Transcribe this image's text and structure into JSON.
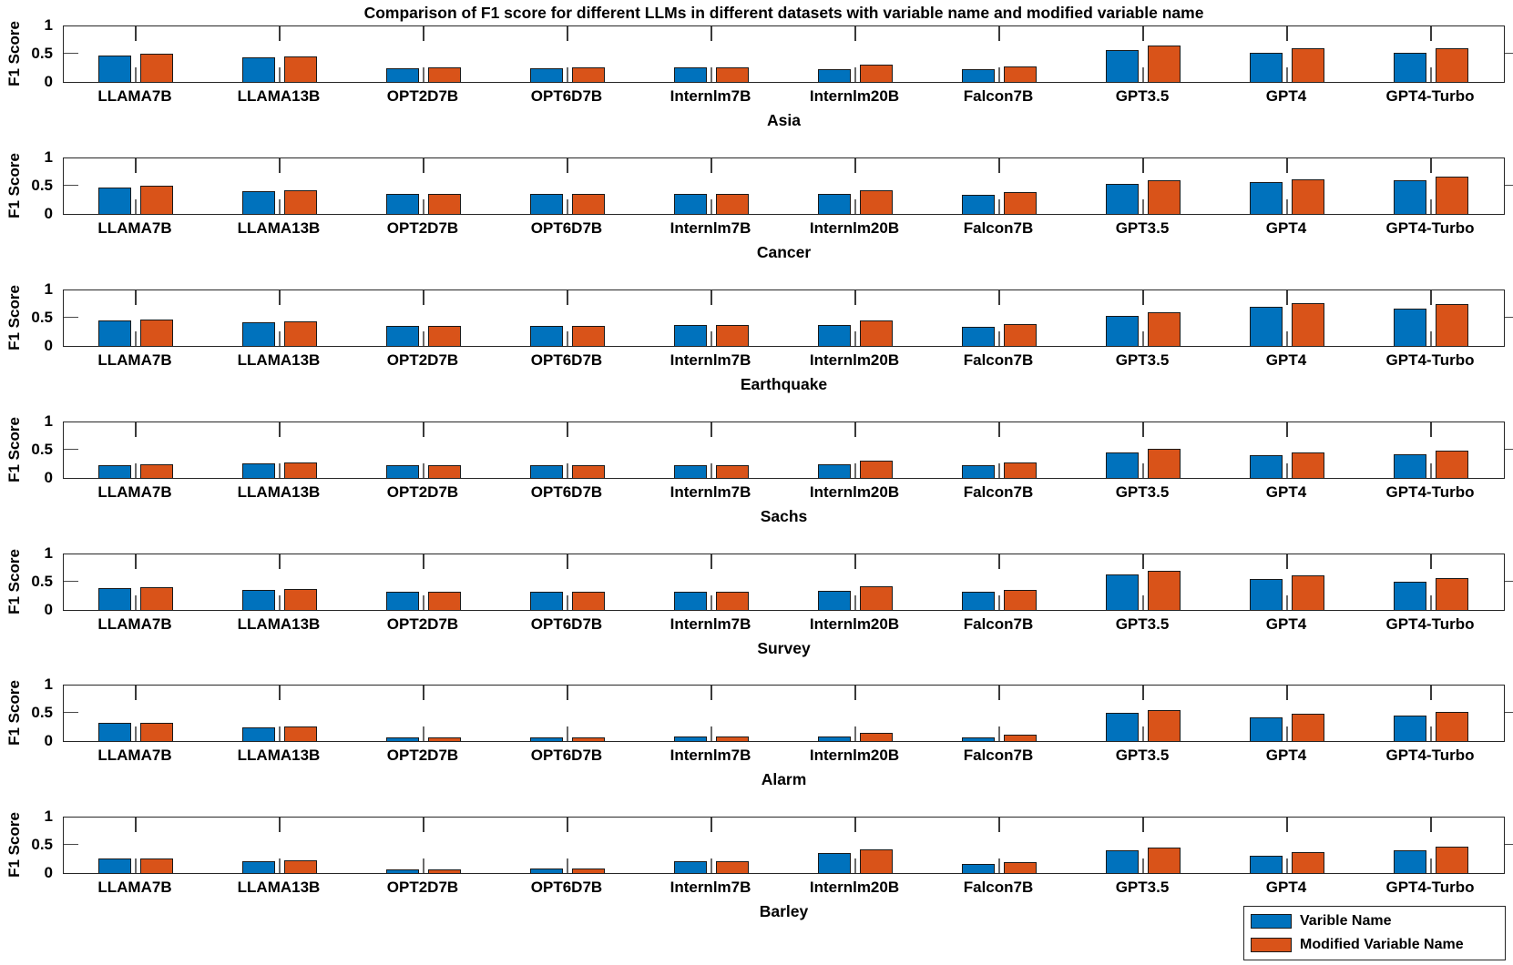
{
  "title": "Comparison of F1 score for different LLMs in different datasets with variable name and modified variable name",
  "ylabel": "F1 Score",
  "yticks": [
    "1",
    "0.5",
    "0"
  ],
  "categories": [
    "LLAMA7B",
    "LLAMA13B",
    "OPT2D7B",
    "OPT6D7B",
    "Internlm7B",
    "Internlm20B",
    "Falcon7B",
    "GPT3.5",
    "GPT4",
    "GPT4-Turbo"
  ],
  "colors": {
    "series_variable": "#0072BD",
    "series_modified": "#D95319",
    "axis": "#262626",
    "bar_edge": "#1a1a1a",
    "background": "#ffffff",
    "text": "#000000"
  },
  "legend": {
    "items": [
      {
        "label": "Varible Name",
        "color": "#0072BD"
      },
      {
        "label": "Modified Variable Name",
        "color": "#D95319"
      }
    ]
  },
  "chart_data": [
    {
      "type": "bar",
      "title": "Asia",
      "ylabel": "F1 Score",
      "ylim": [
        0,
        1
      ],
      "yticks": [
        0,
        0.5,
        1
      ],
      "legend_position": "none",
      "grid": false,
      "series": [
        {
          "name": "Varible Name",
          "values": [
            0.49,
            0.45,
            0.25,
            0.25,
            0.26,
            0.24,
            0.24,
            0.58,
            0.54,
            0.54
          ]
        },
        {
          "name": "Modified Variable Name",
          "values": [
            0.51,
            0.47,
            0.26,
            0.26,
            0.27,
            0.32,
            0.29,
            0.66,
            0.61,
            0.62
          ]
        }
      ]
    },
    {
      "type": "bar",
      "title": "Cancer",
      "ylabel": "F1 Score",
      "ylim": [
        0,
        1
      ],
      "yticks": [
        0,
        0.5,
        1
      ],
      "legend_position": "none",
      "grid": false,
      "series": [
        {
          "name": "Varible Name",
          "values": [
            0.49,
            0.42,
            0.36,
            0.36,
            0.36,
            0.37,
            0.35,
            0.55,
            0.58,
            0.62
          ]
        },
        {
          "name": "Modified Variable Name",
          "values": [
            0.51,
            0.44,
            0.36,
            0.36,
            0.37,
            0.44,
            0.4,
            0.61,
            0.64,
            0.68
          ]
        }
      ]
    },
    {
      "type": "bar",
      "title": "Earthquake",
      "ylabel": "F1 Score",
      "ylim": [
        0,
        1
      ],
      "yticks": [
        0,
        0.5,
        1
      ],
      "legend_position": "none",
      "grid": false,
      "series": [
        {
          "name": "Varible Name",
          "values": [
            0.46,
            0.43,
            0.36,
            0.36,
            0.38,
            0.38,
            0.35,
            0.55,
            0.71,
            0.69
          ]
        },
        {
          "name": "Modified Variable Name",
          "values": [
            0.48,
            0.45,
            0.37,
            0.37,
            0.39,
            0.46,
            0.4,
            0.62,
            0.79,
            0.76
          ]
        }
      ]
    },
    {
      "type": "bar",
      "title": "Sachs",
      "ylabel": "F1 Score",
      "ylim": [
        0,
        1
      ],
      "yticks": [
        0,
        0.5,
        1
      ],
      "legend_position": "none",
      "grid": false,
      "series": [
        {
          "name": "Varible Name",
          "values": [
            0.24,
            0.27,
            0.23,
            0.23,
            0.23,
            0.25,
            0.23,
            0.47,
            0.41,
            0.44
          ]
        },
        {
          "name": "Modified Variable Name",
          "values": [
            0.25,
            0.29,
            0.23,
            0.23,
            0.24,
            0.32,
            0.28,
            0.54,
            0.47,
            0.5
          ]
        }
      ]
    },
    {
      "type": "bar",
      "title": "Survey",
      "ylabel": "F1 Score",
      "ylim": [
        0,
        1
      ],
      "yticks": [
        0,
        0.5,
        1
      ],
      "legend_position": "none",
      "grid": false,
      "series": [
        {
          "name": "Varible Name",
          "values": [
            0.4,
            0.37,
            0.34,
            0.34,
            0.34,
            0.35,
            0.33,
            0.65,
            0.56,
            0.52
          ]
        },
        {
          "name": "Modified Variable Name",
          "values": [
            0.42,
            0.38,
            0.34,
            0.34,
            0.34,
            0.43,
            0.37,
            0.72,
            0.63,
            0.59
          ]
        }
      ]
    },
    {
      "type": "bar",
      "title": "Alarm",
      "ylabel": "F1 Score",
      "ylim": [
        0,
        1
      ],
      "yticks": [
        0,
        0.5,
        1
      ],
      "legend_position": "none",
      "grid": false,
      "series": [
        {
          "name": "Varible Name",
          "values": [
            0.33,
            0.25,
            0.07,
            0.07,
            0.09,
            0.08,
            0.07,
            0.51,
            0.43,
            0.47
          ]
        },
        {
          "name": "Modified Variable Name",
          "values": [
            0.34,
            0.27,
            0.07,
            0.07,
            0.08,
            0.15,
            0.12,
            0.57,
            0.5,
            0.53
          ]
        }
      ]
    },
    {
      "type": "bar",
      "title": "Barley",
      "ylabel": "F1 Score",
      "ylim": [
        0,
        1
      ],
      "yticks": [
        0,
        0.5,
        1
      ],
      "legend_position": "bottom-right",
      "grid": false,
      "series": [
        {
          "name": "Varible Name",
          "values": [
            0.26,
            0.22,
            0.06,
            0.09,
            0.21,
            0.36,
            0.16,
            0.41,
            0.32,
            0.41
          ]
        },
        {
          "name": "Modified Variable Name",
          "values": [
            0.27,
            0.23,
            0.06,
            0.09,
            0.21,
            0.43,
            0.2,
            0.47,
            0.39,
            0.48
          ]
        }
      ]
    }
  ]
}
